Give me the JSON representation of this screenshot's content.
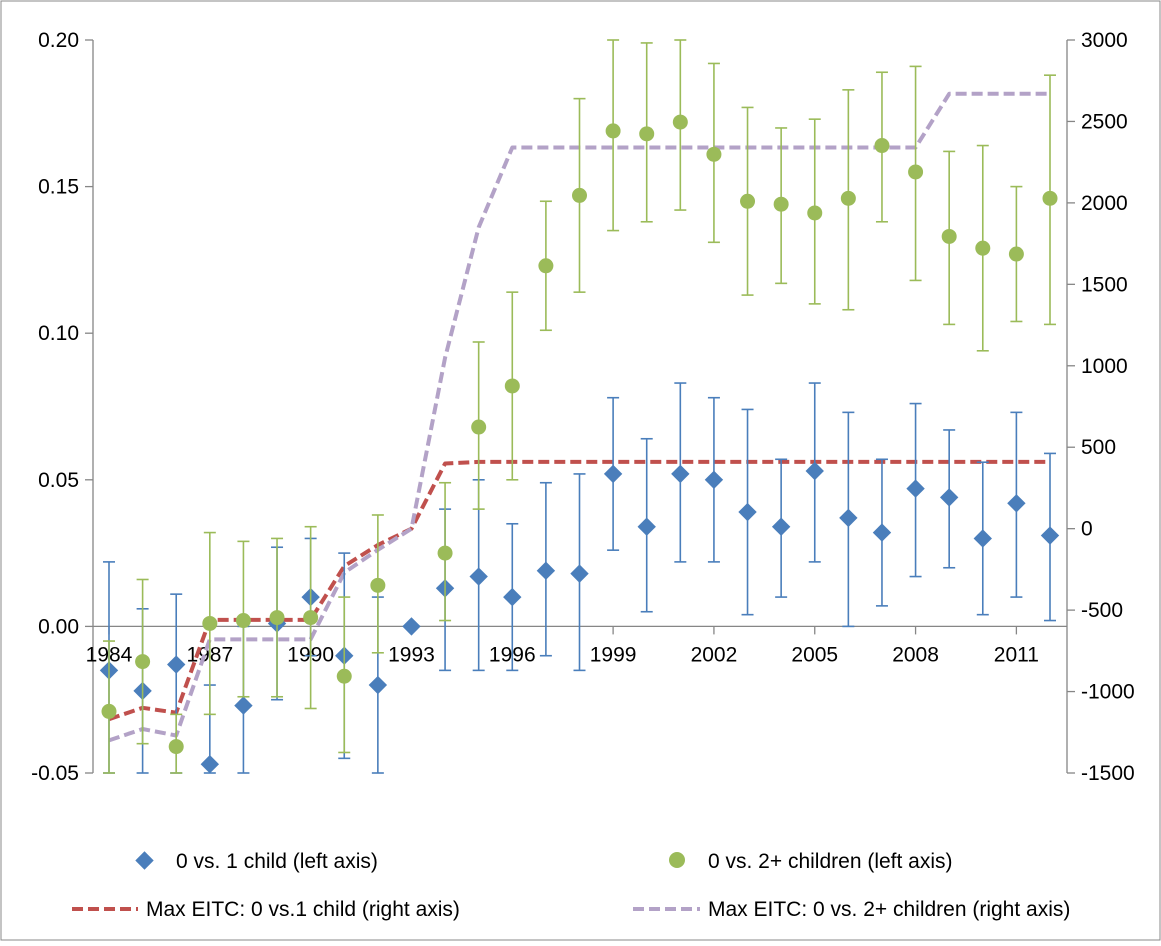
{
  "chart_data": {
    "type": "scatter",
    "title": "",
    "xlabel": "",
    "ylabel": "",
    "x_tick_labels": [
      "1984",
      "1987",
      "1990",
      "1993",
      "1996",
      "1999",
      "2002",
      "2005",
      "2008",
      "2011"
    ],
    "y_left": {
      "min": -0.05,
      "max": 0.2,
      "ticks": [
        "-0.05",
        "0.00",
        "0.05",
        "0.10",
        "0.15",
        "0.20"
      ]
    },
    "y_right": {
      "min": -1500,
      "max": 3000,
      "ticks": [
        "-1500",
        "-1000",
        "-500",
        "0",
        "500",
        "1000",
        "1500",
        "2000",
        "2500",
        "3000"
      ]
    },
    "years": [
      1984,
      1985,
      1986,
      1987,
      1988,
      1989,
      1990,
      1991,
      1992,
      1993,
      1994,
      1995,
      1996,
      1997,
      1998,
      1999,
      2000,
      2001,
      2002,
      2003,
      2004,
      2005,
      2006,
      2007,
      2008,
      2009,
      2010,
      2011,
      2012
    ],
    "series": [
      {
        "name": "0 vs. 1 child (left axis)",
        "axis": "left",
        "kind": "points",
        "marker": "diamond",
        "color": "#4a7ebb",
        "values": [
          -0.015,
          -0.022,
          -0.013,
          -0.047,
          -0.027,
          0.001,
          0.01,
          -0.01,
          -0.02,
          0.0,
          0.013,
          0.017,
          0.01,
          0.019,
          0.018,
          0.052,
          0.034,
          0.052,
          0.05,
          0.039,
          0.034,
          0.053,
          0.037,
          0.032,
          0.047,
          0.044,
          0.03,
          0.042,
          0.031
        ],
        "lower": [
          -0.05,
          -0.05,
          -0.05,
          -0.05,
          -0.05,
          -0.025,
          -0.01,
          -0.045,
          -0.05,
          null,
          -0.015,
          -0.015,
          -0.015,
          -0.01,
          -0.015,
          0.026,
          0.005,
          0.022,
          0.022,
          0.004,
          0.01,
          0.022,
          0.0,
          0.007,
          0.017,
          0.02,
          0.004,
          0.01,
          0.002
        ],
        "upper": [
          0.022,
          0.006,
          0.011,
          -0.02,
          0.0,
          0.027,
          0.03,
          0.025,
          0.01,
          null,
          0.04,
          0.05,
          0.035,
          0.049,
          0.052,
          0.078,
          0.064,
          0.083,
          0.078,
          0.074,
          0.057,
          0.083,
          0.073,
          0.057,
          0.076,
          0.067,
          0.056,
          0.073,
          0.059
        ]
      },
      {
        "name": "0 vs. 2+ children (left axis)",
        "axis": "left",
        "kind": "points",
        "marker": "circle",
        "color": "#9bbb59",
        "values": [
          -0.029,
          -0.012,
          -0.041,
          0.001,
          0.002,
          0.003,
          0.003,
          -0.017,
          0.014,
          null,
          0.025,
          0.068,
          0.082,
          0.123,
          0.147,
          0.169,
          0.168,
          0.172,
          0.161,
          0.145,
          0.144,
          0.141,
          0.146,
          0.164,
          0.155,
          0.133,
          0.129,
          0.127,
          0.146
        ],
        "lower": [
          -0.05,
          -0.04,
          -0.05,
          -0.03,
          -0.024,
          -0.024,
          -0.028,
          -0.043,
          -0.009,
          null,
          0.002,
          0.04,
          0.05,
          0.101,
          0.114,
          0.135,
          0.138,
          0.142,
          0.131,
          0.113,
          0.117,
          0.11,
          0.108,
          0.138,
          0.118,
          0.103,
          0.094,
          0.104,
          0.103
        ],
        "upper": [
          -0.005,
          0.016,
          -0.03,
          0.032,
          0.029,
          0.03,
          0.034,
          0.01,
          0.038,
          null,
          0.049,
          0.097,
          0.114,
          0.145,
          0.18,
          0.2,
          0.199,
          0.2,
          0.192,
          0.177,
          0.17,
          0.173,
          0.183,
          0.189,
          0.191,
          0.162,
          0.164,
          0.15,
          0.188
        ]
      },
      {
        "name": "Max EITC: 0 vs.1 child (right axis)",
        "axis": "right",
        "kind": "dashed-line",
        "color": "#c0504d",
        "values": [
          -1170,
          -1100,
          -1130,
          -560,
          -560,
          -560,
          -560,
          -230,
          -100,
          0,
          400,
          410,
          410,
          410,
          410,
          410,
          410,
          410,
          410,
          410,
          410,
          410,
          410,
          410,
          410,
          410,
          410,
          410,
          410
        ]
      },
      {
        "name": "Max EITC: 0 vs. 2+ children (right axis)",
        "axis": "right",
        "kind": "dashed-line",
        "color": "#b3a2c7",
        "values": [
          -1300,
          -1230,
          -1270,
          -680,
          -680,
          -680,
          -680,
          -270,
          -130,
          0,
          1050,
          1850,
          2340,
          2340,
          2340,
          2340,
          2340,
          2340,
          2340,
          2340,
          2340,
          2340,
          2340,
          2340,
          2340,
          2670,
          2670,
          2670,
          2670
        ]
      }
    ],
    "legend_position": "bottom",
    "grid": false
  }
}
